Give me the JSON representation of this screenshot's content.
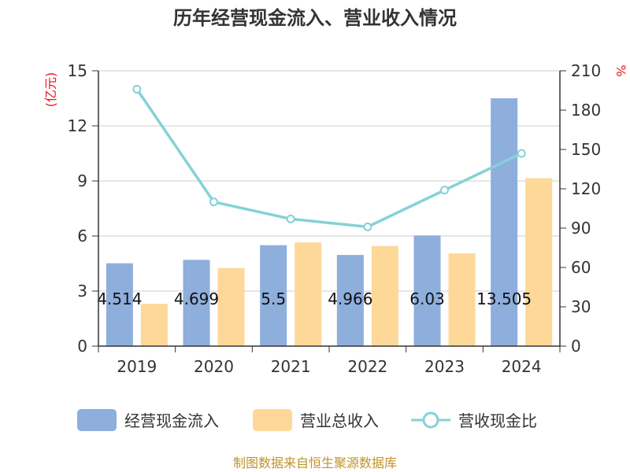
{
  "chart_data": {
    "type": "bar",
    "title": "历年经营现金流入、营业收入情况",
    "categories": [
      "2019",
      "2020",
      "2021",
      "2022",
      "2023",
      "2024"
    ],
    "series": [
      {
        "name": "经营现金流入",
        "kind": "bar",
        "axis": "left",
        "color": "#8eaedc",
        "values": [
          4.514,
          4.699,
          5.5,
          4.966,
          6.03,
          13.505
        ],
        "labels": [
          "4.514",
          "4.699",
          "5.5",
          "4.966",
          "6.03",
          "13.505"
        ]
      },
      {
        "name": "营业总收入",
        "kind": "bar",
        "axis": "left",
        "color": "#fdd899",
        "values": [
          2.3,
          4.25,
          5.65,
          5.45,
          5.05,
          9.15
        ]
      },
      {
        "name": "营收现金比",
        "kind": "line",
        "axis": "right",
        "color": "#84d2d6",
        "values": [
          196,
          110,
          97,
          91,
          119,
          147
        ]
      }
    ],
    "left_axis": {
      "label": "(亿元)",
      "ylim": [
        0,
        15
      ],
      "ticks": [
        "0",
        "3",
        "6",
        "9",
        "12",
        "15"
      ]
    },
    "right_axis": {
      "label": "%",
      "ylim": [
        0,
        210
      ],
      "ticks": [
        "0",
        "30",
        "60",
        "90",
        "120",
        "150",
        "180",
        "210"
      ]
    },
    "grid": true,
    "legend": "bottom"
  },
  "source": "制图数据来自恒生聚源数据库"
}
